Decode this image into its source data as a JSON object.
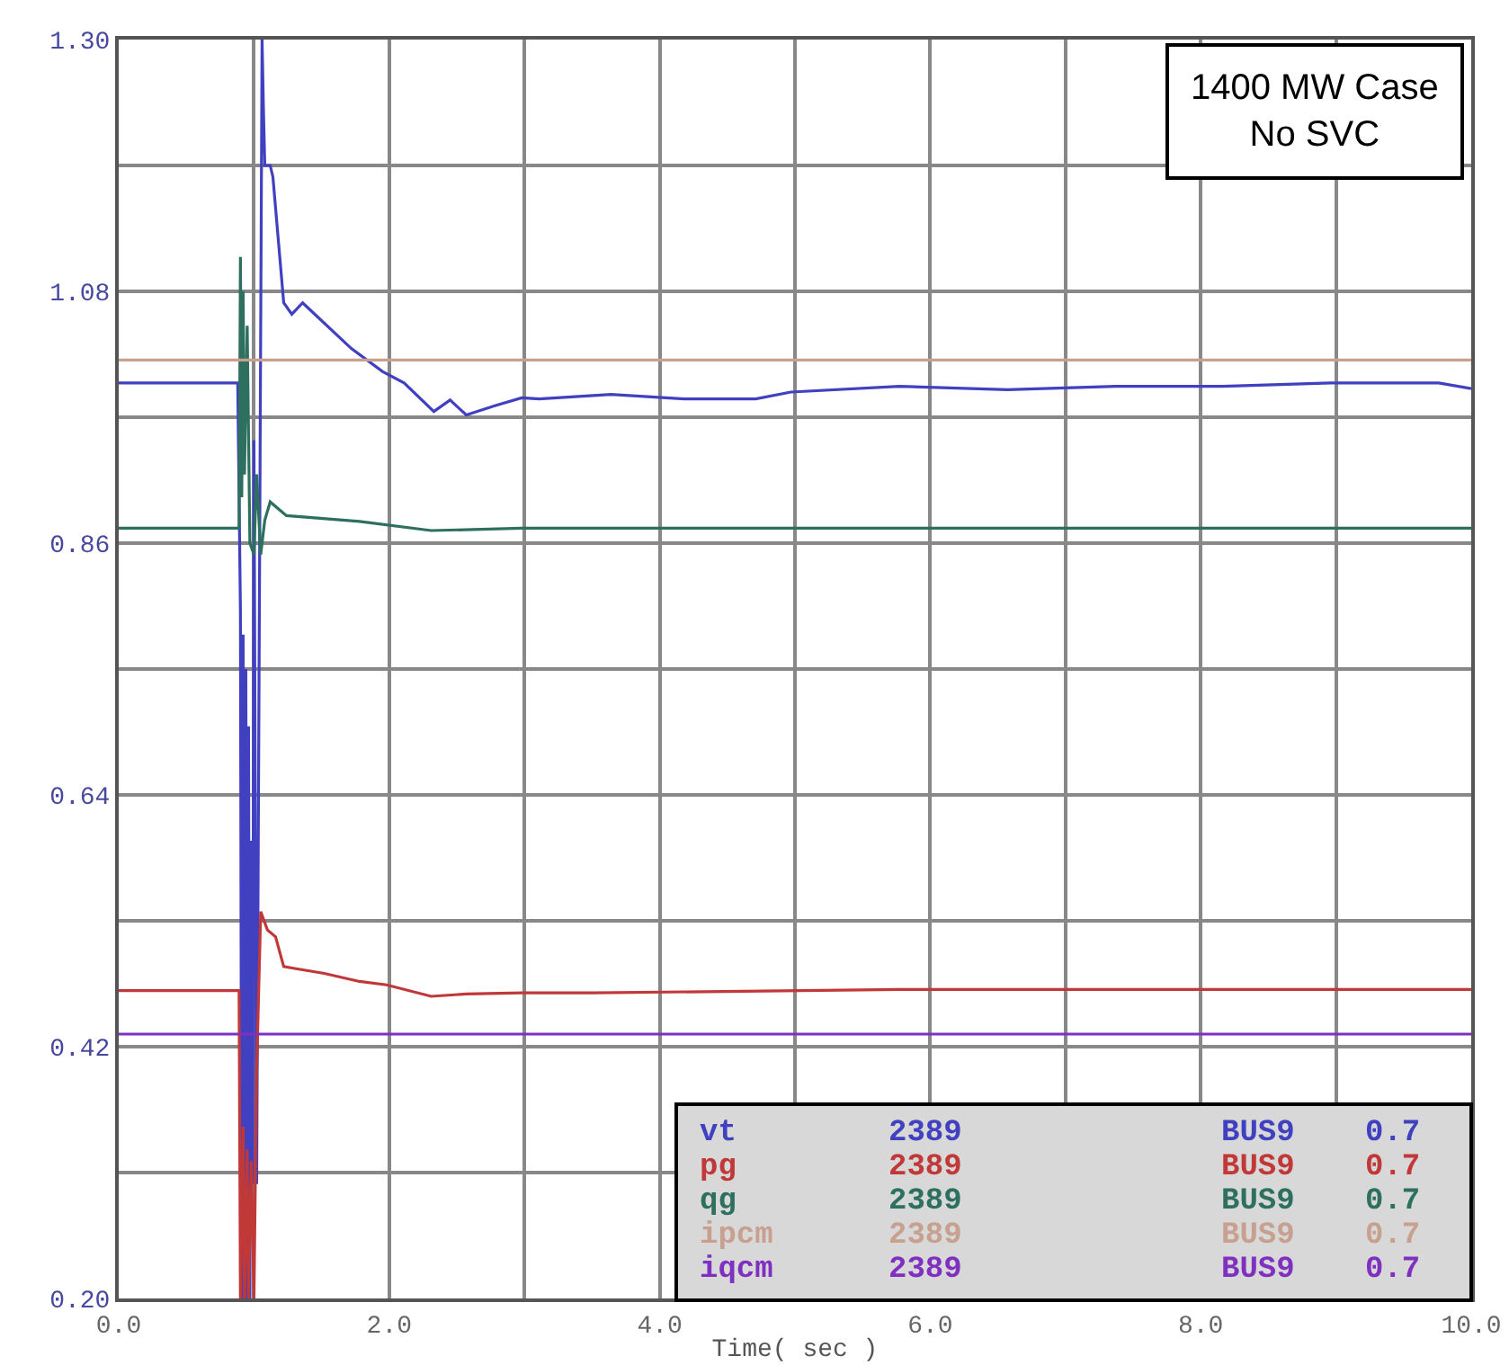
{
  "chart_data": {
    "type": "line",
    "xlabel": "Time( sec )",
    "annotations": [
      "1400 MW Case\nNo SVC"
    ],
    "xlim": [
      0,
      10
    ],
    "xticks": [
      {
        "value": 0,
        "label": "0.0"
      },
      {
        "value": 1,
        "label": null
      },
      {
        "value": 2,
        "label": "2.0"
      },
      {
        "value": 3,
        "label": null
      },
      {
        "value": 4,
        "label": "4.0"
      },
      {
        "value": 5,
        "label": null
      },
      {
        "value": 6,
        "label": "6.0"
      },
      {
        "value": 7,
        "label": null
      },
      {
        "value": 8,
        "label": "8.0"
      },
      {
        "value": 9,
        "label": null
      },
      {
        "value": 10,
        "label": "10.0"
      }
    ],
    "ylim": [
      0.2,
      1.3
    ],
    "yticks": [
      {
        "value": 0.2,
        "label": "0.20"
      },
      {
        "value": 0.31,
        "label": null
      },
      {
        "value": 0.42,
        "label": "0.42"
      },
      {
        "value": 0.53,
        "label": null
      },
      {
        "value": 0.64,
        "label": "0.64"
      },
      {
        "value": 0.75,
        "label": null
      },
      {
        "value": 0.86,
        "label": "0.86"
      },
      {
        "value": 0.97,
        "label": null
      },
      {
        "value": 1.08,
        "label": "1.08"
      },
      {
        "value": 1.19,
        "label": null
      },
      {
        "value": 1.3,
        "label": "1.30"
      }
    ],
    "grid": true,
    "line_style": "solid",
    "marker": "none",
    "series": [
      {
        "name": "vt 2389 BUS9 0.7",
        "color": "#4040c0",
        "x": [
          0,
          0.5,
          0.88,
          0.9,
          0.91,
          0.92,
          0.93,
          0.94,
          0.95,
          0.96,
          0.97,
          0.98,
          0.99,
          1.0,
          1.02,
          1.04,
          1.06,
          1.07,
          1.08,
          1.12,
          1.14,
          1.22,
          1.28,
          1.36,
          1.45,
          1.72,
          1.95,
          2.11,
          2.33,
          2.45,
          2.57,
          2.78,
          2.98,
          3.11,
          3.64,
          4.18,
          4.71,
          4.97,
          5.77,
          6.57,
          7.37,
          8.16,
          8.96,
          9.76,
          10
        ],
        "values": [
          1.0,
          1.0,
          1.0,
          0.8,
          0.2,
          0.78,
          0.2,
          0.75,
          0.2,
          0.7,
          0.2,
          0.6,
          0.3,
          0.95,
          0.3,
          0.8,
          1.3,
          1.24,
          1.19,
          1.19,
          1.18,
          1.07,
          1.06,
          1.07,
          1.06,
          1.03,
          1.01,
          1.0,
          0.975,
          0.985,
          0.972,
          0.98,
          0.987,
          0.986,
          0.99,
          0.986,
          0.986,
          0.992,
          0.997,
          0.994,
          0.997,
          0.997,
          1.0,
          1.0,
          0.995
        ]
      },
      {
        "name": "pg 2389 BUS9 0.7",
        "color": "#c03838",
        "x": [
          0,
          0.89,
          0.9,
          0.92,
          0.93,
          0.95,
          0.96,
          0.98,
          1.0,
          1.02,
          1.05,
          1.1,
          1.16,
          1.22,
          1.32,
          1.52,
          1.78,
          1.98,
          2.31,
          2.57,
          2.98,
          3.51,
          5.77,
          10
        ],
        "values": [
          0.469,
          0.469,
          0.2,
          0.35,
          0.2,
          0.33,
          0.2,
          0.32,
          0.2,
          0.4,
          0.538,
          0.522,
          0.516,
          0.49,
          0.488,
          0.484,
          0.477,
          0.474,
          0.464,
          0.466,
          0.467,
          0.467,
          0.47,
          0.47
        ]
      },
      {
        "name": "qg 2389 BUS9 0.7",
        "color": "#2e7060",
        "x": [
          0,
          0.89,
          0.9,
          0.91,
          0.92,
          0.93,
          0.95,
          0.97,
          1.0,
          1.02,
          1.05,
          1.08,
          1.12,
          1.24,
          1.78,
          2.31,
          2.98,
          10
        ],
        "values": [
          0.873,
          0.873,
          1.11,
          0.9,
          1.08,
          0.92,
          1.05,
          0.86,
          0.85,
          0.92,
          0.85,
          0.88,
          0.896,
          0.884,
          0.879,
          0.871,
          0.873,
          0.873
        ]
      },
      {
        "name": "ipcm 2389 BUS9 0.7",
        "color": "#c8a090",
        "x": [
          0,
          10
        ],
        "values": [
          1.02,
          1.02
        ]
      },
      {
        "name": "iqcm 2389 BUS9 0.7",
        "color": "#8030c0",
        "x": [
          0,
          10
        ],
        "values": [
          0.431,
          0.431
        ]
      }
    ]
  }
}
